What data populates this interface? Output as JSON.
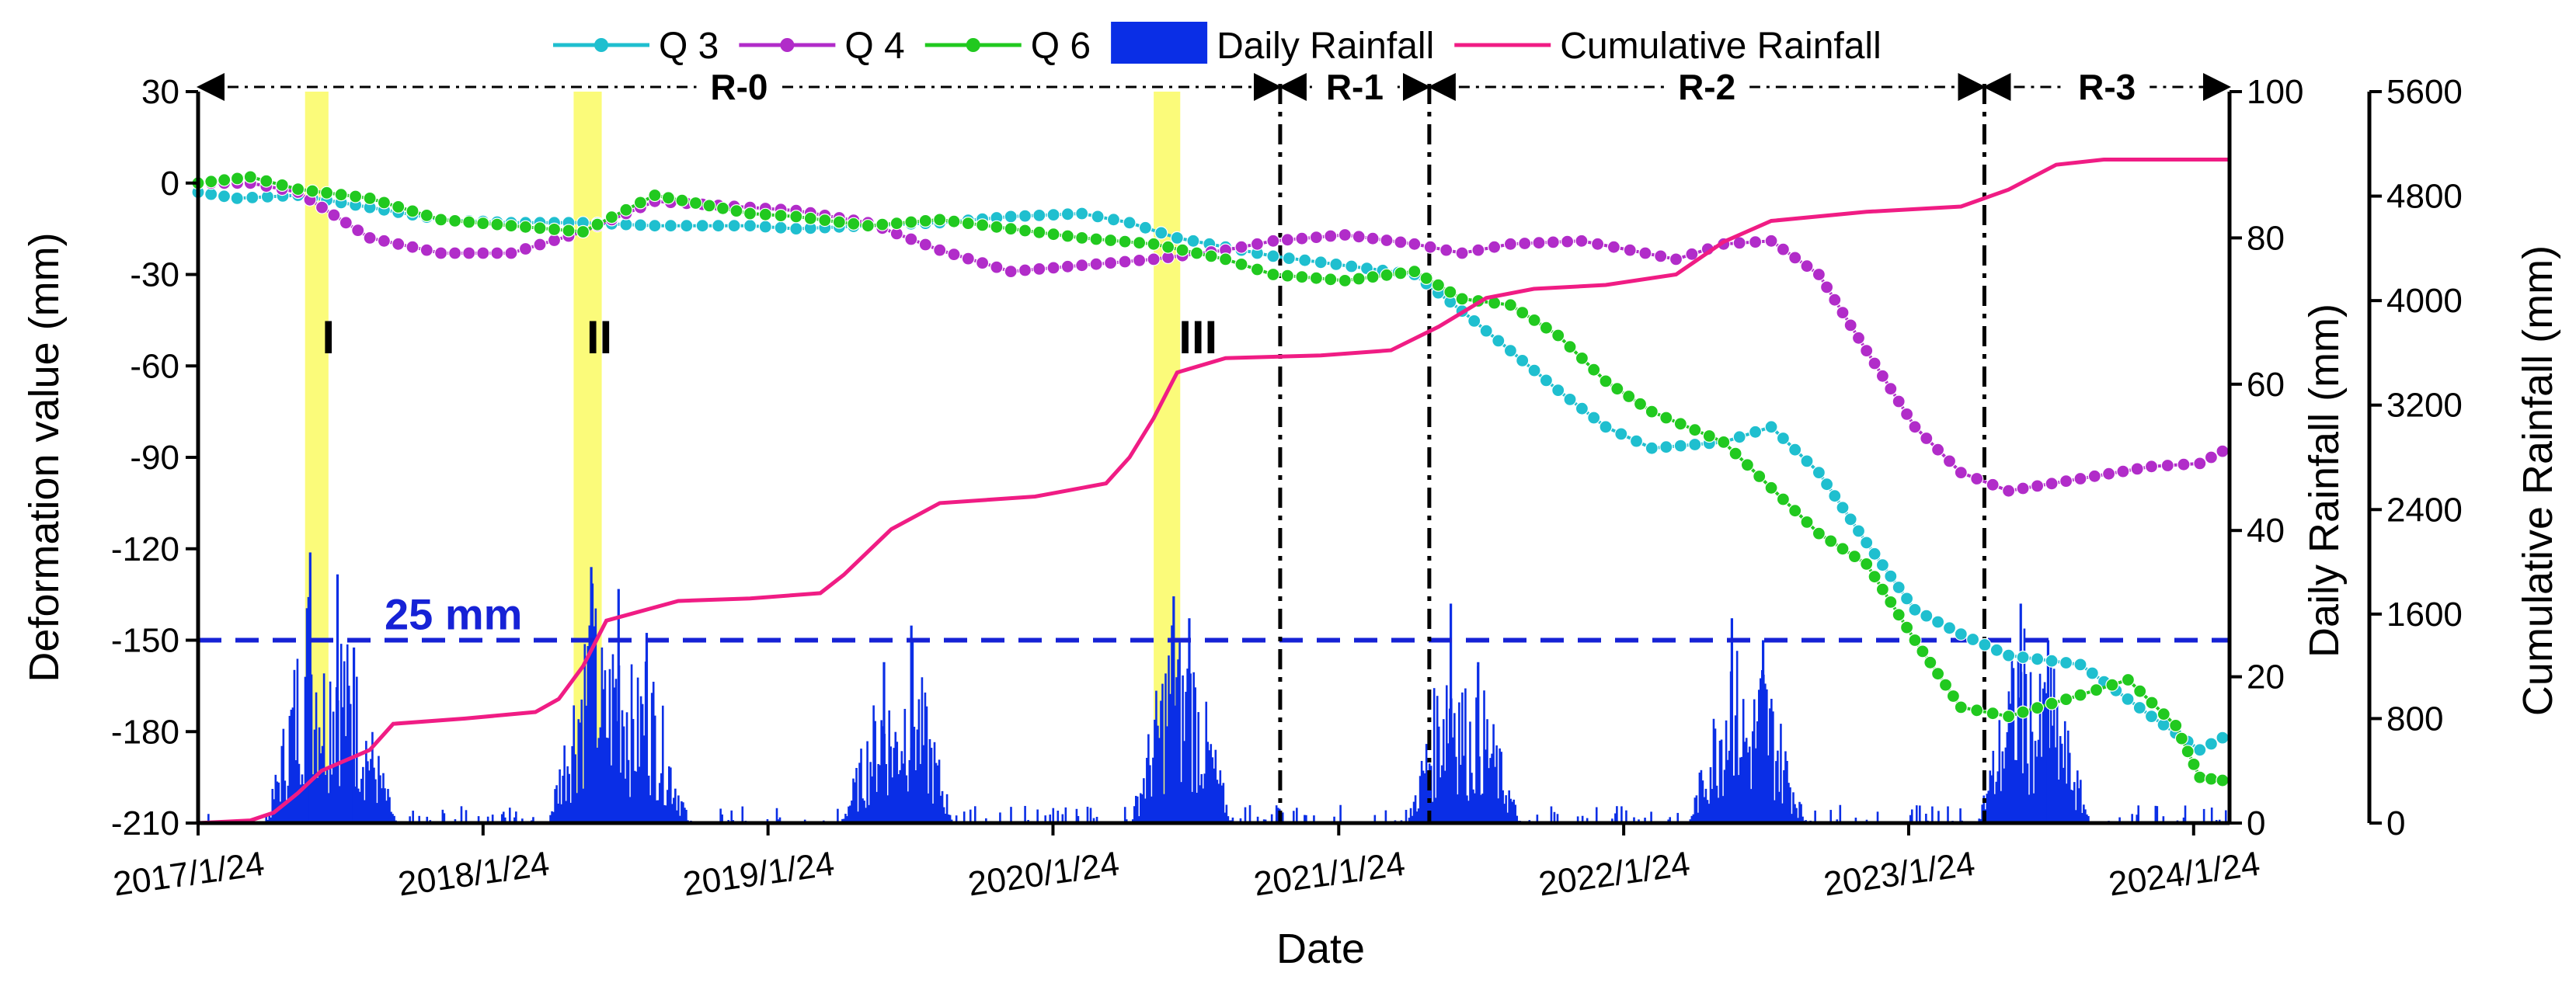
{
  "chart_data": {
    "type": "line",
    "xlabel": "Date",
    "x_ticks": [
      "2017/1/24",
      "2018/1/24",
      "2019/1/24",
      "2020/1/24",
      "2021/1/24",
      "2022/1/24",
      "2023/1/24",
      "2024/1/24"
    ],
    "x_range": [
      "2017/1/24",
      "2024/3/10"
    ],
    "y_left": {
      "label": "Deformation value (mm)",
      "range": [
        -210,
        30
      ],
      "ticks": [
        "30",
        "0",
        "-30",
        "-60",
        "-90",
        "-120",
        "-150",
        "-180",
        "-210"
      ]
    },
    "y_right1": {
      "label": "Daily Rainfall (mm)",
      "range": [
        0,
        100
      ],
      "ticks": [
        "100",
        "80",
        "60",
        "40",
        "20",
        "0"
      ]
    },
    "y_right2": {
      "label": "Cumulative Rainfall (mm)",
      "range": [
        0,
        5600
      ],
      "ticks": [
        "5600",
        "4800",
        "4000",
        "3200",
        "2400",
        "1600",
        "800",
        "0"
      ]
    },
    "legend": {
      "position": "top",
      "entries": [
        "Q 3",
        "Q 4",
        "Q 6",
        "Daily Rainfall",
        "Cumulative Rainfall"
      ]
    },
    "regions": [
      {
        "label": "R-0",
        "start": "2017/1/24",
        "end": "2020/11/10"
      },
      {
        "label": "R-1",
        "start": "2020/11/10",
        "end": "2021/5/20"
      },
      {
        "label": "R-2",
        "start": "2021/5/20",
        "end": "2023/5/1"
      },
      {
        "label": "R-3",
        "start": "2023/5/1",
        "end": "2024/3/10"
      }
    ],
    "events": [
      {
        "label": "I",
        "start": "2017/6/10",
        "end": "2017/7/10"
      },
      {
        "label": "II",
        "start": "2018/5/20",
        "end": "2018/6/25"
      },
      {
        "label": "III",
        "start": "2020/6/1",
        "end": "2020/7/5"
      }
    ],
    "threshold": {
      "label": "25 mm",
      "daily_rainfall": 25
    },
    "colors": {
      "Q 3": "#1fbfcf",
      "Q 4": "#b12cc9",
      "Q 6": "#21c91f",
      "Daily Rainfall": "#0a2ee6",
      "Cumulative Rainfall": "#f01c84",
      "threshold": "#1622d6",
      "event_band": "#fbfb7a"
    },
    "series": [
      {
        "name": "Q 3",
        "axis": "left",
        "points": [
          [
            "2017/1/24",
            -3
          ],
          [
            "2017/3/15",
            -5
          ],
          [
            "2017/6/1",
            -4
          ],
          [
            "2017/9/1",
            -8
          ],
          [
            "2017/12/1",
            -12
          ],
          [
            "2018/3/1",
            -13
          ],
          [
            "2018/6/1",
            -13
          ],
          [
            "2018/9/1",
            -14
          ],
          [
            "2019/1/1",
            -14
          ],
          [
            "2019/3/1",
            -15
          ],
          [
            "2019/6/1",
            -14
          ],
          [
            "2019/9/1",
            -13
          ],
          [
            "2019/12/1",
            -11
          ],
          [
            "2020/3/1",
            -10
          ],
          [
            "2020/5/1",
            -13
          ],
          [
            "2020/7/1",
            -18
          ],
          [
            "2020/9/1",
            -21
          ],
          [
            "2020/11/1",
            -24
          ],
          [
            "2021/1/1",
            -26
          ],
          [
            "2021/3/1",
            -28
          ],
          [
            "2021/5/1",
            -30
          ],
          [
            "2021/7/1",
            -42
          ],
          [
            "2021/9/1",
            -55
          ],
          [
            "2021/11/1",
            -68
          ],
          [
            "2022/1/1",
            -80
          ],
          [
            "2022/3/1",
            -87
          ],
          [
            "2022/6/1",
            -85
          ],
          [
            "2022/8/1",
            -80
          ],
          [
            "2022/10/1",
            -95
          ],
          [
            "2022/12/1",
            -118
          ],
          [
            "2023/2/1",
            -140
          ],
          [
            "2023/4/1",
            -148
          ],
          [
            "2023/6/1",
            -155
          ],
          [
            "2023/9/1",
            -158
          ],
          [
            "2023/12/1",
            -175
          ],
          [
            "2024/2/1",
            -186
          ],
          [
            "2024/3/1",
            -182
          ]
        ]
      },
      {
        "name": "Q 4",
        "axis": "left",
        "points": [
          [
            "2017/1/24",
            0
          ],
          [
            "2017/4/1",
            0
          ],
          [
            "2017/6/1",
            -3
          ],
          [
            "2017/9/1",
            -18
          ],
          [
            "2017/12/1",
            -23
          ],
          [
            "2018/3/1",
            -23
          ],
          [
            "2018/6/1",
            -16
          ],
          [
            "2018/9/1",
            -6
          ],
          [
            "2019/1/1",
            -8
          ],
          [
            "2019/3/1",
            -9
          ],
          [
            "2019/6/1",
            -13
          ],
          [
            "2019/9/1",
            -22
          ],
          [
            "2019/12/1",
            -29
          ],
          [
            "2020/3/1",
            -27
          ],
          [
            "2020/6/1",
            -25
          ],
          [
            "2020/9/1",
            -22
          ],
          [
            "2020/11/1",
            -19
          ],
          [
            "2021/2/1",
            -17
          ],
          [
            "2021/5/1",
            -20
          ],
          [
            "2021/7/1",
            -23
          ],
          [
            "2021/9/1",
            -20
          ],
          [
            "2021/12/1",
            -19
          ],
          [
            "2022/2/1",
            -22
          ],
          [
            "2022/4/1",
            -25
          ],
          [
            "2022/6/1",
            -20
          ],
          [
            "2022/8/1",
            -19
          ],
          [
            "2022/10/1",
            -30
          ],
          [
            "2022/12/1",
            -55
          ],
          [
            "2023/2/1",
            -80
          ],
          [
            "2023/4/1",
            -95
          ],
          [
            "2023/6/1",
            -101
          ],
          [
            "2023/9/1",
            -97
          ],
          [
            "2023/12/1",
            -93
          ],
          [
            "2024/2/1",
            -92
          ],
          [
            "2024/3/1",
            -88
          ]
        ]
      },
      {
        "name": "Q 6",
        "axis": "left",
        "points": [
          [
            "2017/1/24",
            0
          ],
          [
            "2017/4/1",
            2
          ],
          [
            "2017/6/1",
            -2
          ],
          [
            "2017/9/1",
            -5
          ],
          [
            "2017/12/1",
            -12
          ],
          [
            "2018/3/1",
            -14
          ],
          [
            "2018/6/1",
            -16
          ],
          [
            "2018/9/1",
            -4
          ],
          [
            "2019/1/1",
            -10
          ],
          [
            "2019/3/1",
            -11
          ],
          [
            "2019/6/1",
            -14
          ],
          [
            "2019/9/1",
            -12
          ],
          [
            "2019/12/1",
            -15
          ],
          [
            "2020/3/1",
            -18
          ],
          [
            "2020/6/1",
            -20
          ],
          [
            "2020/9/1",
            -25
          ],
          [
            "2020/11/1",
            -30
          ],
          [
            "2021/2/1",
            -32
          ],
          [
            "2021/5/1",
            -29
          ],
          [
            "2021/7/1",
            -38
          ],
          [
            "2021/9/1",
            -40
          ],
          [
            "2021/11/1",
            -50
          ],
          [
            "2022/1/1",
            -65
          ],
          [
            "2022/3/1",
            -75
          ],
          [
            "2022/6/1",
            -85
          ],
          [
            "2022/8/1",
            -100
          ],
          [
            "2022/10/1",
            -115
          ],
          [
            "2022/12/1",
            -125
          ],
          [
            "2023/2/1",
            -150
          ],
          [
            "2023/4/1",
            -172
          ],
          [
            "2023/6/1",
            -175
          ],
          [
            "2023/9/1",
            -168
          ],
          [
            "2023/11/1",
            -163
          ],
          [
            "2024/1/1",
            -178
          ],
          [
            "2024/2/1",
            -195
          ],
          [
            "2024/3/1",
            -196
          ]
        ]
      },
      {
        "name": "Cumulative Rainfall",
        "axis": "right2",
        "points": [
          [
            "2017/1/24",
            0
          ],
          [
            "2017/4/1",
            20
          ],
          [
            "2017/5/1",
            80
          ],
          [
            "2017/6/1",
            230
          ],
          [
            "2017/7/1",
            400
          ],
          [
            "2017/9/1",
            560
          ],
          [
            "2017/10/1",
            760
          ],
          [
            "2018/1/1",
            800
          ],
          [
            "2018/4/1",
            850
          ],
          [
            "2018/5/1",
            950
          ],
          [
            "2018/6/1",
            1200
          ],
          [
            "2018/7/1",
            1550
          ],
          [
            "2018/10/1",
            1700
          ],
          [
            "2019/1/1",
            1720
          ],
          [
            "2019/4/1",
            1760
          ],
          [
            "2019/5/1",
            1900
          ],
          [
            "2019/7/1",
            2250
          ],
          [
            "2019/9/1",
            2450
          ],
          [
            "2020/1/1",
            2500
          ],
          [
            "2020/4/1",
            2600
          ],
          [
            "2020/5/1",
            2800
          ],
          [
            "2020/6/1",
            3100
          ],
          [
            "2020/7/1",
            3450
          ],
          [
            "2020/9/1",
            3560
          ],
          [
            "2021/1/1",
            3580
          ],
          [
            "2021/4/1",
            3620
          ],
          [
            "2021/6/1",
            3800
          ],
          [
            "2021/8/1",
            4020
          ],
          [
            "2021/10/1",
            4090
          ],
          [
            "2022/1/1",
            4120
          ],
          [
            "2022/4/1",
            4200
          ],
          [
            "2022/6/1",
            4450
          ],
          [
            "2022/8/1",
            4610
          ],
          [
            "2022/12/1",
            4680
          ],
          [
            "2023/4/1",
            4720
          ],
          [
            "2023/6/1",
            4850
          ],
          [
            "2023/8/1",
            5040
          ],
          [
            "2023/10/1",
            5080
          ],
          [
            "2024/3/10",
            5080
          ]
        ]
      }
    ],
    "daily_rainfall": {
      "axis": "right1",
      "note": "daily bars, peaks in rainy seasons",
      "peaks": [
        [
          "2017/6/15",
          37
        ],
        [
          "2017/7/20",
          34
        ],
        [
          "2017/8/10",
          24
        ],
        [
          "2018/6/10",
          35
        ],
        [
          "2018/7/15",
          32
        ],
        [
          "2018/8/20",
          26
        ],
        [
          "2019/6/20",
          22
        ],
        [
          "2019/7/25",
          27
        ],
        [
          "2020/6/25",
          31
        ],
        [
          "2020/7/15",
          28
        ],
        [
          "2021/6/15",
          30
        ],
        [
          "2021/7/20",
          22
        ],
        [
          "2022/6/10",
          28
        ],
        [
          "2022/7/20",
          25
        ],
        [
          "2023/6/15",
          30
        ],
        [
          "2023/7/20",
          25
        ]
      ]
    }
  }
}
